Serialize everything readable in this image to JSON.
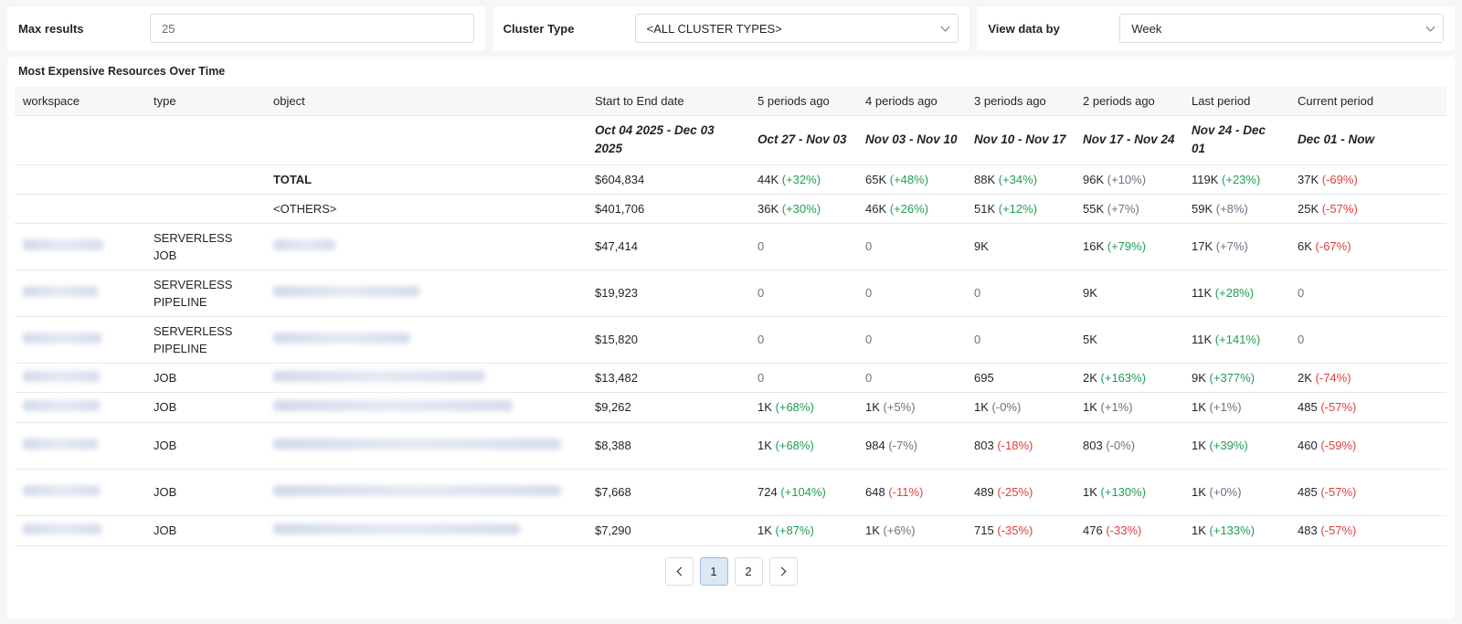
{
  "filters": {
    "max_results": {
      "label": "Max results",
      "value": "25"
    },
    "cluster_type": {
      "label": "Cluster Type",
      "value": "<ALL CLUSTER TYPES>"
    },
    "view_by": {
      "label": "View data by",
      "value": "Week"
    }
  },
  "panel": {
    "title": "Most Expensive Resources Over Time"
  },
  "table": {
    "headers": [
      "workspace",
      "type",
      "object",
      "Start to End date",
      "5 periods ago",
      "4 periods ago",
      "3 periods ago",
      "2 periods ago",
      "Last period",
      "Current period"
    ],
    "date_row": [
      "",
      "",
      "",
      "Oct 04 2025 - Dec 03 2025",
      "Oct 27 - Nov 03",
      "Nov 03 - Nov 10",
      "Nov 10 - Nov 17",
      "Nov 17 - Nov 24",
      "Nov 24 - Dec 01",
      "Dec 01 - Now"
    ],
    "rows": [
      {
        "type": "",
        "object": "TOTAL",
        "total": "$604,834",
        "bold": true,
        "periods": [
          {
            "v": "44K",
            "d": "(+32%)",
            "t": "pos"
          },
          {
            "v": "65K",
            "d": "(+48%)",
            "t": "pos"
          },
          {
            "v": "88K",
            "d": "(+34%)",
            "t": "pos"
          },
          {
            "v": "96K",
            "d": "(+10%)",
            "t": "neu"
          },
          {
            "v": "119K",
            "d": "(+23%)",
            "t": "pos"
          },
          {
            "v": "37K",
            "d": "(-69%)",
            "t": "neg"
          }
        ]
      },
      {
        "type": "",
        "object": "<OTHERS>",
        "total": "$401,706",
        "periods": [
          {
            "v": "36K",
            "d": "(+30%)",
            "t": "pos"
          },
          {
            "v": "46K",
            "d": "(+26%)",
            "t": "pos"
          },
          {
            "v": "51K",
            "d": "(+12%)",
            "t": "pos"
          },
          {
            "v": "55K",
            "d": "(+7%)",
            "t": "neu"
          },
          {
            "v": "59K",
            "d": "(+8%)",
            "t": "neu"
          },
          {
            "v": "25K",
            "d": "(-57%)",
            "t": "neg"
          }
        ]
      },
      {
        "type": "SERVERLESS JOB",
        "object": "",
        "total": "$47,414",
        "periods": [
          {
            "v": "0",
            "d": "",
            "t": "zero"
          },
          {
            "v": "0",
            "d": "",
            "t": "zero"
          },
          {
            "v": "9K",
            "d": "",
            "t": ""
          },
          {
            "v": "16K",
            "d": "(+79%)",
            "t": "pos"
          },
          {
            "v": "17K",
            "d": "(+7%)",
            "t": "neu"
          },
          {
            "v": "6K",
            "d": "(-67%)",
            "t": "neg"
          }
        ]
      },
      {
        "type": "SERVERLESS PIPELINE",
        "object": "",
        "total": "$19,923",
        "periods": [
          {
            "v": "0",
            "d": "",
            "t": "zero"
          },
          {
            "v": "0",
            "d": "",
            "t": "zero"
          },
          {
            "v": "0",
            "d": "",
            "t": "zero"
          },
          {
            "v": "9K",
            "d": "",
            "t": ""
          },
          {
            "v": "11K",
            "d": "(+28%)",
            "t": "pos"
          },
          {
            "v": "0",
            "d": "",
            "t": "zero"
          }
        ]
      },
      {
        "type": "SERVERLESS PIPELINE",
        "object": "",
        "total": "$15,820",
        "periods": [
          {
            "v": "0",
            "d": "",
            "t": "zero"
          },
          {
            "v": "0",
            "d": "",
            "t": "zero"
          },
          {
            "v": "0",
            "d": "",
            "t": "zero"
          },
          {
            "v": "5K",
            "d": "",
            "t": ""
          },
          {
            "v": "11K",
            "d": "(+141%)",
            "t": "pos"
          },
          {
            "v": "0",
            "d": "",
            "t": "zero"
          }
        ]
      },
      {
        "type": "JOB",
        "object": "",
        "total": "$13,482",
        "periods": [
          {
            "v": "0",
            "d": "",
            "t": "zero"
          },
          {
            "v": "0",
            "d": "",
            "t": "zero"
          },
          {
            "v": "695",
            "d": "",
            "t": ""
          },
          {
            "v": "2K",
            "d": "(+163%)",
            "t": "pos"
          },
          {
            "v": "9K",
            "d": "(+377%)",
            "t": "pos"
          },
          {
            "v": "2K",
            "d": "(-74%)",
            "t": "neg"
          }
        ]
      },
      {
        "type": "JOB",
        "object": "",
        "total": "$9,262",
        "periods": [
          {
            "v": "1K",
            "d": "(+68%)",
            "t": "pos"
          },
          {
            "v": "1K",
            "d": "(+5%)",
            "t": "neu"
          },
          {
            "v": "1K",
            "d": "(-0%)",
            "t": "neu"
          },
          {
            "v": "1K",
            "d": "(+1%)",
            "t": "neu"
          },
          {
            "v": "1K",
            "d": "(+1%)",
            "t": "neu"
          },
          {
            "v": "485",
            "d": "(-57%)",
            "t": "neg"
          }
        ]
      },
      {
        "type": "JOB",
        "object": "",
        "total": "$8,388",
        "periods": [
          {
            "v": "1K",
            "d": "(+68%)",
            "t": "pos"
          },
          {
            "v": "984",
            "d": "(-7%)",
            "t": "neu"
          },
          {
            "v": "803",
            "d": "(-18%)",
            "t": "neg"
          },
          {
            "v": "803",
            "d": "(-0%)",
            "t": "neu"
          },
          {
            "v": "1K",
            "d": "(+39%)",
            "t": "pos"
          },
          {
            "v": "460",
            "d": "(-59%)",
            "t": "neg"
          }
        ]
      },
      {
        "type": "JOB",
        "object": "",
        "total": "$7,668",
        "periods": [
          {
            "v": "724",
            "d": "(+104%)",
            "t": "pos"
          },
          {
            "v": "648",
            "d": "(-11%)",
            "t": "neg"
          },
          {
            "v": "489",
            "d": "(-25%)",
            "t": "neg"
          },
          {
            "v": "1K",
            "d": "(+130%)",
            "t": "pos"
          },
          {
            "v": "1K",
            "d": "(+0%)",
            "t": "neu"
          },
          {
            "v": "485",
            "d": "(-57%)",
            "t": "neg"
          }
        ]
      },
      {
        "type": "JOB",
        "object": "",
        "total": "$7,290",
        "periods": [
          {
            "v": "1K",
            "d": "(+87%)",
            "t": "pos"
          },
          {
            "v": "1K",
            "d": "(+6%)",
            "t": "neu"
          },
          {
            "v": "715",
            "d": "(-35%)",
            "t": "neg"
          },
          {
            "v": "476",
            "d": "(-33%)",
            "t": "neg"
          },
          {
            "v": "1K",
            "d": "(+133%)",
            "t": "pos"
          },
          {
            "v": "483",
            "d": "(-57%)",
            "t": "neg"
          }
        ]
      }
    ]
  },
  "pagination": {
    "pages": [
      "1",
      "2"
    ],
    "current": "1"
  },
  "colors": {
    "positive": "#1f9d55",
    "negative": "#e03e3e",
    "neutral": "#6b7280",
    "active_page": "#dce8f5"
  }
}
